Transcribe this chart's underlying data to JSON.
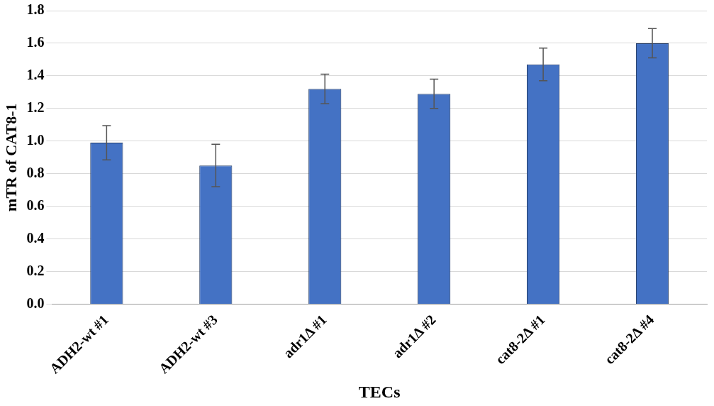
{
  "chart_data": {
    "type": "bar",
    "xlabel": "TECs",
    "ylabel": "mTR of CAT8-1",
    "categories": [
      "ADH2-wt #1",
      "ADH2-wt #3",
      "adr1Δ #1",
      "adr1Δ #2",
      "cat8-2Δ #1",
      "cat8-2Δ #4"
    ],
    "values": [
      0.99,
      0.85,
      1.32,
      1.29,
      1.47,
      1.6
    ],
    "errors": [
      0.105,
      0.13,
      0.09,
      0.09,
      0.1,
      0.09
    ],
    "color": "#4472c4",
    "ylim": [
      0,
      1.8
    ],
    "yticks": [
      {
        "value": 0,
        "label": "0.0"
      },
      {
        "value": 0.2,
        "label": "0.2"
      },
      {
        "value": 0.4,
        "label": "0.4"
      },
      {
        "value": 0.6,
        "label": "0.6"
      },
      {
        "value": 0.8,
        "label": "0.8"
      },
      {
        "value": 1,
        "label": "1.0"
      },
      {
        "value": 1.2,
        "label": "1.2"
      },
      {
        "value": 1.4,
        "label": "1.4"
      },
      {
        "value": 1.6,
        "label": "1.6"
      },
      {
        "value": 1.8,
        "label": "1.8"
      }
    ],
    "grid": "y",
    "legend": false
  }
}
